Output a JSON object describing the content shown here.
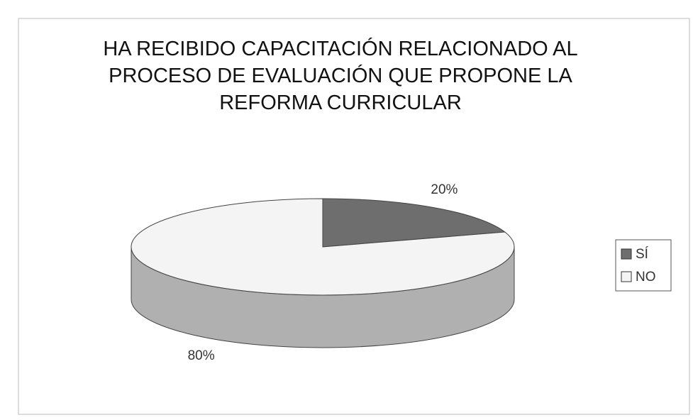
{
  "chart_data": {
    "type": "pie3d",
    "title": "HA RECIBIDO CAPACITACIÓN RELACIONADO AL PROCESO DE EVALUACIÓN QUE PROPONE LA REFORMA CURRICULAR",
    "categories": [
      "SÍ",
      "NO"
    ],
    "values": [
      20,
      80
    ],
    "value_labels": [
      "20%",
      "80%"
    ],
    "colors": [
      "#6e6e6e",
      "#f4f4f4"
    ],
    "legend": "right"
  }
}
